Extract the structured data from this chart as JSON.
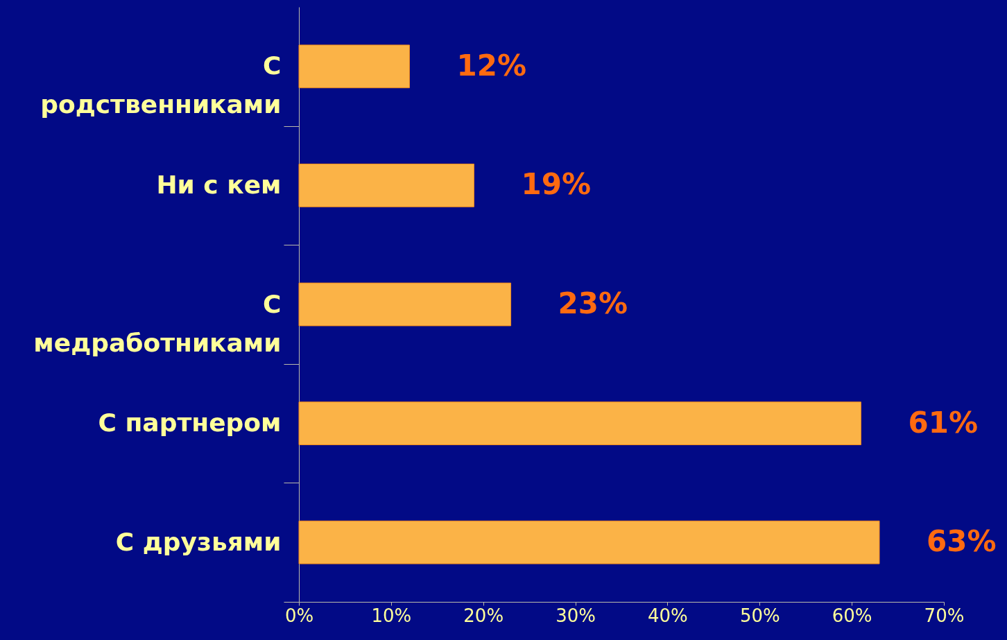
{
  "chart_data": {
    "type": "bar",
    "orientation": "horizontal",
    "categories": [
      "С родственниками",
      "Ни с кем",
      "С медработниками",
      "С партнером",
      "С друзьями"
    ],
    "values": [
      12,
      19,
      23,
      61,
      63
    ],
    "value_labels": [
      "12%",
      "19%",
      "23%",
      "61%",
      "63%"
    ],
    "color": "#fbb347",
    "xlim": [
      0,
      70
    ],
    "xticks": [
      {
        "value": 0,
        "label": "0%"
      },
      {
        "value": 10,
        "label": "10%"
      },
      {
        "value": 20,
        "label": "20%"
      },
      {
        "value": 30,
        "label": "30%"
      },
      {
        "value": 40,
        "label": "40%"
      },
      {
        "value": 50,
        "label": "50%"
      },
      {
        "value": 60,
        "label": "60%"
      },
      {
        "value": 70,
        "label": "70%"
      }
    ],
    "grid": false
  }
}
